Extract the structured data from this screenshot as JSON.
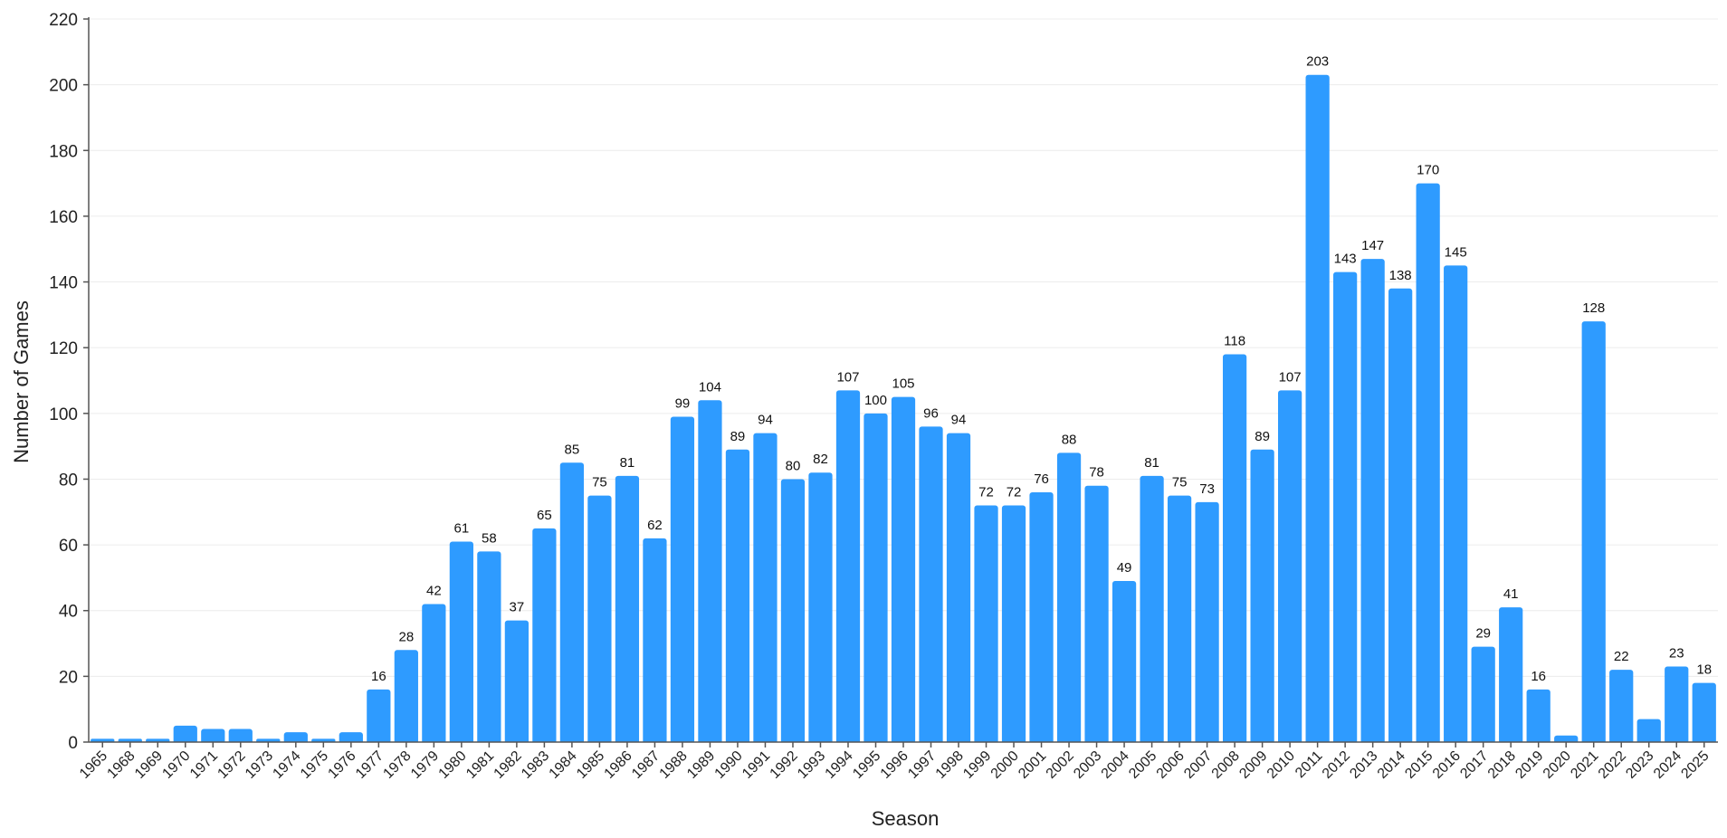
{
  "chart_data": {
    "type": "bar",
    "title": "",
    "xlabel": "Season",
    "ylabel": "Number of Games",
    "ylim": [
      0,
      220
    ],
    "yticks": [
      0,
      20,
      40,
      60,
      80,
      100,
      120,
      140,
      160,
      180,
      200,
      220
    ],
    "grid": true,
    "legend": "none",
    "bar_color": "#2e9bff",
    "categories": [
      "1965",
      "1968",
      "1969",
      "1970",
      "1971",
      "1972",
      "1973",
      "1974",
      "1975",
      "1976",
      "1977",
      "1978",
      "1979",
      "1980",
      "1981",
      "1982",
      "1983",
      "1984",
      "1985",
      "1986",
      "1987",
      "1988",
      "1989",
      "1990",
      "1991",
      "1992",
      "1993",
      "1994",
      "1995",
      "1996",
      "1997",
      "1998",
      "1999",
      "2000",
      "2001",
      "2002",
      "2003",
      "2004",
      "2005",
      "2006",
      "2007",
      "2008",
      "2009",
      "2010",
      "2011",
      "2012",
      "2013",
      "2014",
      "2015",
      "2016",
      "2017",
      "2018",
      "2019",
      "2020",
      "2021",
      "2022",
      "2023",
      "2024",
      "2025"
    ],
    "values": [
      1,
      1,
      1,
      5,
      4,
      4,
      1,
      3,
      1,
      3,
      16,
      28,
      42,
      61,
      58,
      37,
      65,
      85,
      75,
      81,
      62,
      99,
      104,
      89,
      94,
      80,
      82,
      107,
      100,
      105,
      96,
      94,
      72,
      72,
      76,
      88,
      78,
      49,
      81,
      75,
      73,
      118,
      89,
      107,
      203,
      143,
      147,
      138,
      170,
      145,
      29,
      41,
      16,
      2,
      128,
      22,
      7,
      23,
      18
    ],
    "data_labels": [
      "",
      "",
      "",
      "",
      "",
      "",
      "",
      "",
      "",
      "",
      "16",
      "28",
      "42",
      "61",
      "58",
      "37",
      "65",
      "85",
      "75",
      "81",
      "62",
      "99",
      "104",
      "89",
      "94",
      "80",
      "82",
      "107",
      "100",
      "105",
      "96",
      "94",
      "72",
      "72",
      "76",
      "88",
      "78",
      "49",
      "81",
      "75",
      "73",
      "118",
      "89",
      "107",
      "203",
      "143",
      "147",
      "138",
      "170",
      "145",
      "29",
      "41",
      "16",
      "",
      "128",
      "22",
      "",
      "23",
      "18"
    ]
  }
}
